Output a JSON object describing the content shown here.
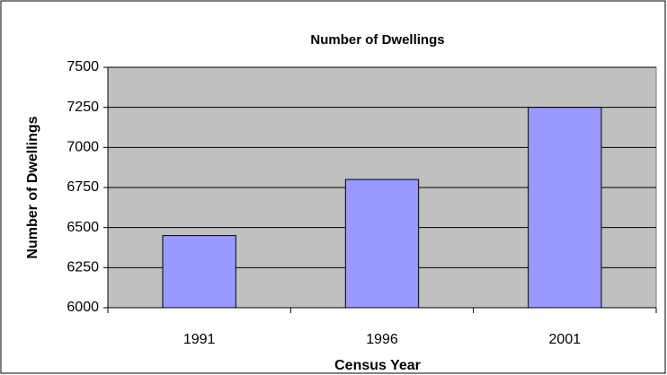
{
  "chart_data": {
    "type": "bar",
    "title": "Number of Dwellings",
    "x_label": "Census Year",
    "y_label": "Number of Dwellings",
    "categories": [
      "1991",
      "1996",
      "2001"
    ],
    "values": [
      6450,
      6800,
      7250
    ],
    "color": "#9999ff",
    "ylim": [
      6000,
      7500
    ],
    "yticks": [
      6000,
      6250,
      6500,
      6750,
      7000,
      7250,
      7500
    ],
    "grid": true
  }
}
